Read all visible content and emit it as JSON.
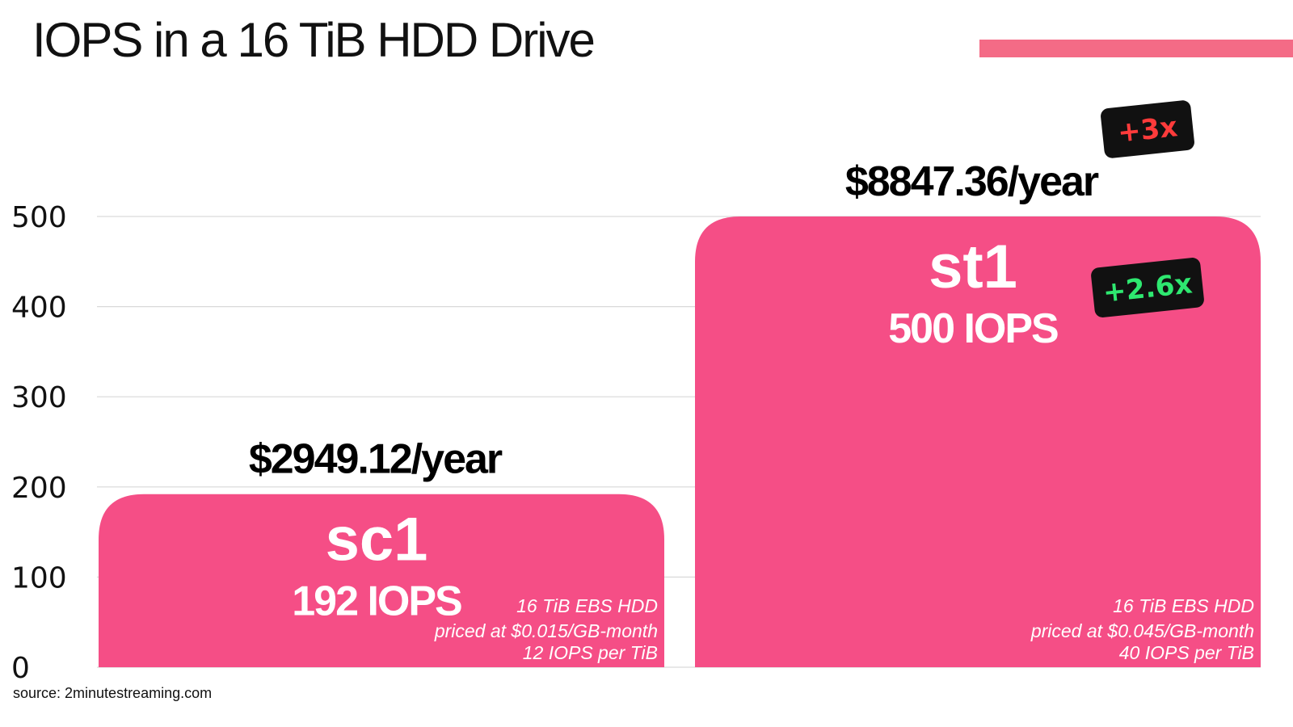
{
  "title": "IOPS in a 16 TiB HDD Drive",
  "source": "source: 2minutestreaming.com",
  "colors": {
    "bar": "#f54e86",
    "accent": "#f46b86",
    "grid": "#d9d9d9",
    "badge_bg": "#111111",
    "badge_red": "#ff3b3b",
    "badge_green": "#2ee870"
  },
  "chart_data": {
    "type": "bar",
    "title": "IOPS in a 16 TiB HDD Drive",
    "ylim": [
      0,
      500
    ],
    "yticks": [
      "0",
      "100",
      "200",
      "300",
      "400",
      "500"
    ],
    "grid": true,
    "categories": [
      "sc1",
      "st1"
    ],
    "values": [
      192,
      500
    ],
    "bars": [
      {
        "name": "sc1",
        "value": 192,
        "iops_label": "192 IOPS",
        "price_label": "$2949.12/year",
        "note_lines": [
          "16 TiB EBS HDD",
          "priced at $0.015/GB-month",
          "12 IOPS per TiB"
        ]
      },
      {
        "name": "st1",
        "value": 500,
        "iops_label": "500 IOPS",
        "price_label": "$8847.36/year",
        "note_lines": [
          "16 TiB EBS HDD",
          "priced at $0.045/GB-month",
          "40 IOPS per TiB"
        ]
      }
    ],
    "annotations": [
      {
        "text": "+3x",
        "color": "red",
        "refers_to": "price"
      },
      {
        "text": "+2.6x",
        "color": "green",
        "refers_to": "iops"
      }
    ]
  }
}
